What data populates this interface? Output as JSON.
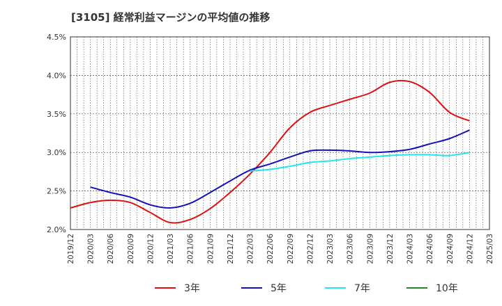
{
  "chart_data": {
    "type": "line",
    "title": "[3105]  経常利益マージンの平均値の推移",
    "xlabel": "",
    "ylabel": "",
    "ylim": [
      2.0,
      4.5
    ],
    "yticks": [
      "2.0%",
      "2.5%",
      "3.0%",
      "3.5%",
      "4.0%",
      "4.5%"
    ],
    "xticks": [
      "2019/12",
      "2020/03",
      "2020/06",
      "2020/09",
      "2020/12",
      "2021/03",
      "2021/06",
      "2021/09",
      "2021/12",
      "2022/03",
      "2022/06",
      "2022/09",
      "2022/12",
      "2023/03",
      "2023/06",
      "2023/09",
      "2023/12",
      "2024/03",
      "2024/06",
      "2024/09",
      "2024/12",
      "2025/03"
    ],
    "grid": true,
    "legend_position": "bottom",
    "series": [
      {
        "name": "3年",
        "color": "#dd1111",
        "x": [
          "2019/12",
          "2020/03",
          "2020/06",
          "2020/09",
          "2020/12",
          "2021/03",
          "2021/06",
          "2021/09",
          "2021/12",
          "2022/03",
          "2022/06",
          "2022/09",
          "2022/12",
          "2023/03",
          "2023/06",
          "2023/09",
          "2023/12",
          "2024/03",
          "2024/06",
          "2024/09",
          "2024/12"
        ],
        "values": [
          2.28,
          2.35,
          2.38,
          2.35,
          2.22,
          2.09,
          2.13,
          2.27,
          2.48,
          2.72,
          3.0,
          3.32,
          3.52,
          3.61,
          3.69,
          3.77,
          3.91,
          3.92,
          3.78,
          3.52,
          3.41
        ]
      },
      {
        "name": "5年",
        "color": "#1111bb",
        "x": [
          "2020/03",
          "2020/06",
          "2020/09",
          "2020/12",
          "2021/03",
          "2021/06",
          "2021/09",
          "2021/12",
          "2022/03",
          "2022/06",
          "2022/09",
          "2022/12",
          "2023/03",
          "2023/06",
          "2023/09",
          "2023/12",
          "2024/03",
          "2024/06",
          "2024/09",
          "2024/12"
        ],
        "values": [
          2.55,
          2.48,
          2.42,
          2.32,
          2.28,
          2.34,
          2.48,
          2.63,
          2.77,
          2.85,
          2.94,
          3.02,
          3.03,
          3.02,
          3.0,
          3.01,
          3.04,
          3.11,
          3.18,
          3.29
        ]
      },
      {
        "name": "7年",
        "color": "#22e5ee",
        "x": [
          "2022/03",
          "2022/06",
          "2022/09",
          "2022/12",
          "2023/03",
          "2023/06",
          "2023/09",
          "2023/12",
          "2024/03",
          "2024/06",
          "2024/09",
          "2024/12"
        ],
        "values": [
          2.76,
          2.78,
          2.82,
          2.87,
          2.89,
          2.92,
          2.94,
          2.96,
          2.97,
          2.97,
          2.96,
          3.0
        ]
      },
      {
        "name": "10年",
        "color": "#228822",
        "x": [],
        "values": []
      }
    ]
  }
}
